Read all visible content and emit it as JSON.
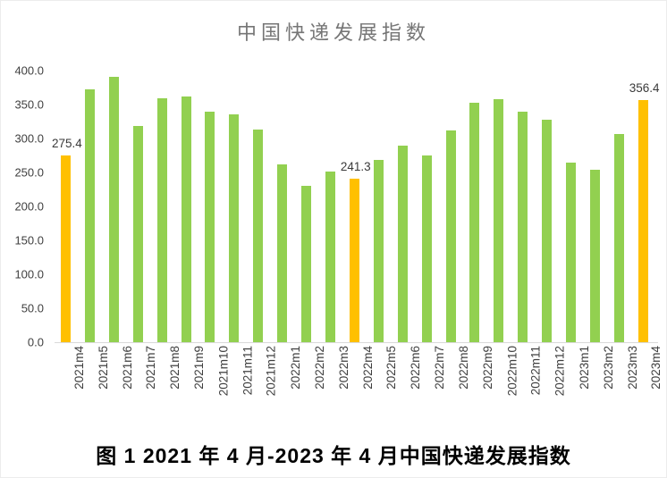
{
  "title": "中国快递发展指数",
  "caption": "图 1 2021 年 4 月-2023 年 4 月中国快递发展指数",
  "colors": {
    "bar_normal": "#92D050",
    "bar_highlight": "#FFC000",
    "axis_line": "#D9D9D9",
    "tick_text": "#3f3f3f",
    "title_text": "#767676",
    "data_label_text": "#3a3a3a",
    "caption_text": "#000000"
  },
  "chart_data": {
    "type": "bar",
    "title": "中国快递发展指数",
    "xlabel": "",
    "ylabel": "",
    "ylim": [
      0,
      400
    ],
    "y_tick_step": 50,
    "y_ticks": [
      "400.0",
      "350.0",
      "300.0",
      "250.0",
      "200.0",
      "150.0",
      "100.0",
      "50.0",
      "0.0"
    ],
    "grid": false,
    "legend": null,
    "x_label_rotation_deg": -90,
    "categories": [
      "2021m4",
      "2021m5",
      "2021m6",
      "2021m7",
      "2021m8",
      "2021m9",
      "2021m10",
      "2021m11",
      "2021m12",
      "2022m1",
      "2022m2",
      "2022m3",
      "2022m4",
      "2022m5",
      "2022m6",
      "2022m7",
      "2022m8",
      "2022m9",
      "2022m10",
      "2022m11",
      "2022m12",
      "2023m1",
      "2023m2",
      "2023m3",
      "2023m4"
    ],
    "values": [
      275.4,
      372,
      391,
      318,
      359,
      362,
      340,
      336,
      313,
      262,
      230,
      251,
      241.3,
      269,
      290,
      275,
      312,
      353,
      358,
      340,
      328,
      265,
      254,
      307,
      356.4
    ],
    "highlight_categories": [
      "2021m4",
      "2022m4",
      "2023m4"
    ],
    "data_labels": [
      {
        "category": "2021m4",
        "text": "275.4"
      },
      {
        "category": "2022m4",
        "text": "241.3"
      },
      {
        "category": "2023m4",
        "text": "356.4"
      }
    ]
  }
}
